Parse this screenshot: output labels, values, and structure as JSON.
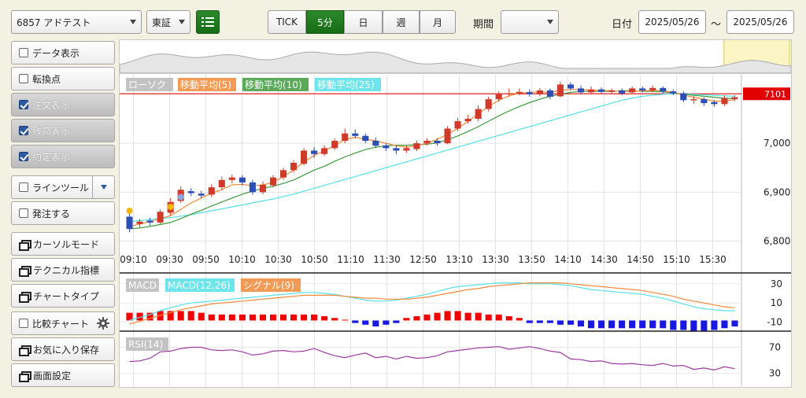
{
  "toolbar": {
    "symbol": "6857 アドテスト",
    "market": "東証",
    "list_icon": "list-icon",
    "timeframes": [
      {
        "label": "TICK",
        "active": false
      },
      {
        "label": "5分",
        "active": true
      },
      {
        "label": "日",
        "active": false
      },
      {
        "label": "週",
        "active": false
      },
      {
        "label": "月",
        "active": false
      }
    ],
    "period_label": "期間",
    "period_value": "",
    "date_label": "日付",
    "date_from": "2025/05/26",
    "date_sep": "〜",
    "date_to": "2025/05/26"
  },
  "sidebar": {
    "items": [
      {
        "label": "データ表示",
        "type": "checkbox",
        "checked": false
      },
      {
        "label": "転換点",
        "type": "checkbox",
        "checked": false
      },
      {
        "label": "注文表示",
        "type": "checkbox",
        "checked": true
      },
      {
        "label": "残高表示",
        "type": "checkbox",
        "checked": true
      },
      {
        "label": "約定表示",
        "type": "checkbox",
        "checked": true
      },
      {
        "label": "ラインツール",
        "type": "checkbox-dropdown",
        "checked": false
      },
      {
        "label": "発注する",
        "type": "checkbox",
        "checked": false
      },
      {
        "label": "カーソルモード",
        "type": "window"
      },
      {
        "label": "テクニカル指標",
        "type": "window"
      },
      {
        "label": "チャートタイプ",
        "type": "window"
      },
      {
        "label": "比較チャート",
        "type": "checkbox-gear",
        "checked": false
      },
      {
        "label": "お気に入り保存",
        "type": "window"
      },
      {
        "label": "画面設定",
        "type": "window"
      }
    ]
  },
  "legend": {
    "candle": "ローソク",
    "ma5": "移動平均(5)",
    "ma10": "移動平均(10)",
    "ma25": "移動平均(25)",
    "macd": "MACD",
    "macd_line": "MACD(12,26)",
    "signal": "シグナル(9)",
    "rsi": "RSI(14)"
  },
  "colors": {
    "up": "#d03a2a",
    "down": "#2d4fb5",
    "ma5": "#f08a3a",
    "ma10": "#3f9a3f",
    "ma25": "#55e0e8",
    "rsi": "#9b3aa0",
    "price_line": "#e02020"
  },
  "chart_data": [
    {
      "type": "candlestick",
      "title": "",
      "price_label": "7101",
      "price_line": 7101,
      "ylim": [
        6780,
        7140
      ],
      "yticks": [
        "7,000",
        "6,900",
        "6,800"
      ],
      "ytick_values": [
        7000,
        6900,
        6800
      ],
      "xticks": [
        "09:10",
        "09:30",
        "09:50",
        "10:10",
        "10:30",
        "10:50",
        "11:10",
        "11:30",
        "12:50",
        "13:10",
        "13:30",
        "13:50",
        "14:10",
        "14:30",
        "14:50",
        "15:10",
        "15:30"
      ],
      "candles": [
        [
          6850,
          6825,
          6858,
          6818
        ],
        [
          6835,
          6840,
          6845,
          6828
        ],
        [
          6842,
          6838,
          6848,
          6832
        ],
        [
          6838,
          6860,
          6865,
          6835
        ],
        [
          6858,
          6880,
          6888,
          6852
        ],
        [
          6882,
          6905,
          6912,
          6878
        ],
        [
          6902,
          6898,
          6908,
          6892
        ],
        [
          6897,
          6893,
          6903,
          6888
        ],
        [
          6895,
          6910,
          6916,
          6890
        ],
        [
          6910,
          6925,
          6932,
          6905
        ],
        [
          6925,
          6930,
          6936,
          6918
        ],
        [
          6930,
          6920,
          6935,
          6914
        ],
        [
          6920,
          6900,
          6925,
          6895
        ],
        [
          6900,
          6915,
          6922,
          6896
        ],
        [
          6914,
          6930,
          6935,
          6910
        ],
        [
          6930,
          6945,
          6950,
          6925
        ],
        [
          6945,
          6960,
          6965,
          6940
        ],
        [
          6958,
          6985,
          6990,
          6955
        ],
        [
          6985,
          6978,
          6992,
          6970
        ],
        [
          6978,
          6990,
          6996,
          6974
        ],
        [
          6990,
          7005,
          7010,
          6986
        ],
        [
          7005,
          7020,
          7030,
          7000
        ],
        [
          7020,
          7015,
          7028,
          7010
        ],
        [
          7015,
          7005,
          7020,
          7000
        ],
        [
          7005,
          6995,
          7012,
          6990
        ],
        [
          6995,
          6990,
          7000,
          6984
        ],
        [
          6990,
          6985,
          6996,
          6978
        ],
        [
          6985,
          6990,
          6995,
          6980
        ],
        [
          6988,
          7000,
          7005,
          6984
        ],
        [
          7000,
          7005,
          7010,
          6996
        ],
        [
          7005,
          7000,
          7010,
          6995
        ],
        [
          7000,
          7030,
          7035,
          6998
        ],
        [
          7030,
          7045,
          7052,
          7025
        ],
        [
          7045,
          7050,
          7058,
          7040
        ],
        [
          7050,
          7070,
          7078,
          7045
        ],
        [
          7070,
          7090,
          7095,
          7065
        ],
        [
          7090,
          7100,
          7106,
          7085
        ],
        [
          7100,
          7102,
          7112,
          7095
        ],
        [
          7102,
          7105,
          7112,
          7098
        ],
        [
          7104,
          7100,
          7110,
          7095
        ],
        [
          7100,
          7108,
          7113,
          7096
        ],
        [
          7108,
          7095,
          7112,
          7090
        ],
        [
          7096,
          7120,
          7126,
          7094
        ],
        [
          7120,
          7112,
          7125,
          7108
        ],
        [
          7112,
          7104,
          7118,
          7100
        ],
        [
          7104,
          7110,
          7116,
          7100
        ],
        [
          7110,
          7105,
          7114,
          7101
        ],
        [
          7105,
          7108,
          7112,
          7102
        ],
        [
          7108,
          7102,
          7112,
          7098
        ],
        [
          7104,
          7112,
          7116,
          7100
        ],
        [
          7112,
          7108,
          7116,
          7104
        ],
        [
          7108,
          7113,
          7118,
          7104
        ],
        [
          7113,
          7106,
          7116,
          7102
        ],
        [
          7106,
          7102,
          7110,
          7098
        ],
        [
          7102,
          7088,
          7106,
          7084
        ],
        [
          7088,
          7090,
          7096,
          7080
        ],
        [
          7090,
          7082,
          7094,
          7076
        ],
        [
          7084,
          7080,
          7088,
          7074
        ],
        [
          7080,
          7092,
          7098,
          7076
        ],
        [
          7090,
          7094,
          7098,
          7086
        ]
      ],
      "ma5": [
        6830,
        6835,
        6840,
        6846,
        6852,
        6865,
        6878,
        6888,
        6898,
        6905,
        6915,
        6916,
        6913,
        6915,
        6920,
        6932,
        6945,
        6962,
        6975,
        6985,
        6995,
        7008,
        7012,
        7008,
        7005,
        7000,
        6995,
        6992,
        6995,
        7000,
        7008,
        7018,
        7030,
        7045,
        7060,
        7075,
        7088,
        7097,
        7102,
        7104,
        7105,
        7104,
        7108,
        7110,
        7110,
        7108,
        7108,
        7107,
        7106,
        7106,
        7107,
        7108,
        7107,
        7104,
        7098,
        7094,
        7090,
        7086,
        7086,
        7089
      ],
      "ma10": [
        6825,
        6827,
        6830,
        6834,
        6838,
        6846,
        6855,
        6863,
        6872,
        6880,
        6888,
        6896,
        6902,
        6908,
        6912,
        6918,
        6925,
        6935,
        6945,
        6953,
        6963,
        6972,
        6980,
        6987,
        6992,
        6995,
        6996,
        6996,
        6997,
        6998,
        7001,
        7007,
        7015,
        7024,
        7034,
        7045,
        7056,
        7066,
        7075,
        7083,
        7090,
        7096,
        7100,
        7104,
        7106,
        7106,
        7106,
        7106,
        7107,
        7107,
        7106,
        7106,
        7105,
        7103,
        7100,
        7098,
        7096,
        7094,
        7092,
        7091
      ],
      "ma25": [
        6840,
        6842,
        6844,
        6846,
        6848,
        6851,
        6854,
        6858,
        6862,
        6866,
        6870,
        6874,
        6878,
        6882,
        6886,
        6891,
        6896,
        6902,
        6908,
        6914,
        6920,
        6926,
        6932,
        6938,
        6944,
        6950,
        6956,
        6962,
        6968,
        6974,
        6980,
        6986,
        6992,
        6998,
        7004,
        7010,
        7016,
        7022,
        7028,
        7034,
        7040,
        7046,
        7052,
        7058,
        7064,
        7070,
        7076,
        7082,
        7088,
        7092,
        7096,
        7098,
        7100,
        7101,
        7101,
        7100,
        7099,
        7098,
        7097,
        7096
      ]
    },
    {
      "type": "line",
      "title": "",
      "yticks": [
        "30",
        "10",
        "-10"
      ],
      "ytick_values": [
        30,
        10,
        -10
      ],
      "ylim": [
        -16,
        38
      ],
      "macd": [
        -8,
        -5,
        -2,
        2,
        5,
        8,
        10,
        11,
        12,
        13,
        14,
        15,
        16,
        17,
        18,
        19,
        20,
        21,
        21,
        20,
        19,
        17,
        15,
        13,
        12,
        12,
        13,
        15,
        17,
        19,
        22,
        25,
        27,
        28,
        29,
        30,
        31,
        31,
        31,
        30,
        30,
        30,
        29,
        28,
        26,
        24,
        23,
        22,
        21,
        20,
        19,
        17,
        15,
        12,
        9,
        6,
        4,
        3,
        2,
        2
      ],
      "signal": [
        -12,
        -9,
        -6,
        -3,
        0,
        3,
        5,
        7,
        9,
        10,
        11,
        12,
        13,
        14,
        15,
        16,
        17,
        18,
        18,
        18,
        18,
        17,
        16,
        15,
        15,
        14,
        14,
        14,
        15,
        16,
        18,
        20,
        22,
        24,
        25,
        27,
        28,
        29,
        30,
        31,
        31,
        31,
        31,
        30,
        29,
        28,
        27,
        26,
        25,
        24,
        23,
        21,
        19,
        17,
        14,
        12,
        10,
        8,
        6,
        5
      ],
      "histogram": [
        4,
        4,
        4,
        5,
        5,
        5,
        5,
        4,
        3,
        3,
        3,
        3,
        3,
        3,
        3,
        3,
        3,
        3,
        3,
        2,
        1,
        0,
        -1,
        -2,
        -3,
        -2,
        -1,
        1,
        2,
        3,
        4,
        5,
        5,
        4,
        4,
        3,
        3,
        2,
        1,
        -1,
        -1,
        -1,
        -2,
        -2,
        -3,
        -4,
        -4,
        -4,
        -4,
        -4,
        -4,
        -4,
        -4,
        -5,
        -5,
        -6,
        -6,
        -5,
        -4,
        -3
      ]
    },
    {
      "type": "line",
      "title": "",
      "yticks": [
        "70",
        "30"
      ],
      "ytick_values": [
        70,
        30
      ],
      "ylim": [
        10,
        90
      ],
      "rsi": [
        48,
        49,
        53,
        63,
        64,
        68,
        70,
        70,
        66,
        65,
        66,
        63,
        58,
        60,
        64,
        65,
        63,
        64,
        68,
        62,
        57,
        54,
        58,
        61,
        54,
        56,
        52,
        56,
        53,
        54,
        57,
        63,
        65,
        67,
        69,
        70,
        71,
        67,
        69,
        71,
        68,
        64,
        62,
        52,
        51,
        48,
        49,
        45,
        44,
        45,
        43,
        42,
        45,
        41,
        42,
        36,
        38,
        35,
        40,
        37
      ]
    }
  ]
}
